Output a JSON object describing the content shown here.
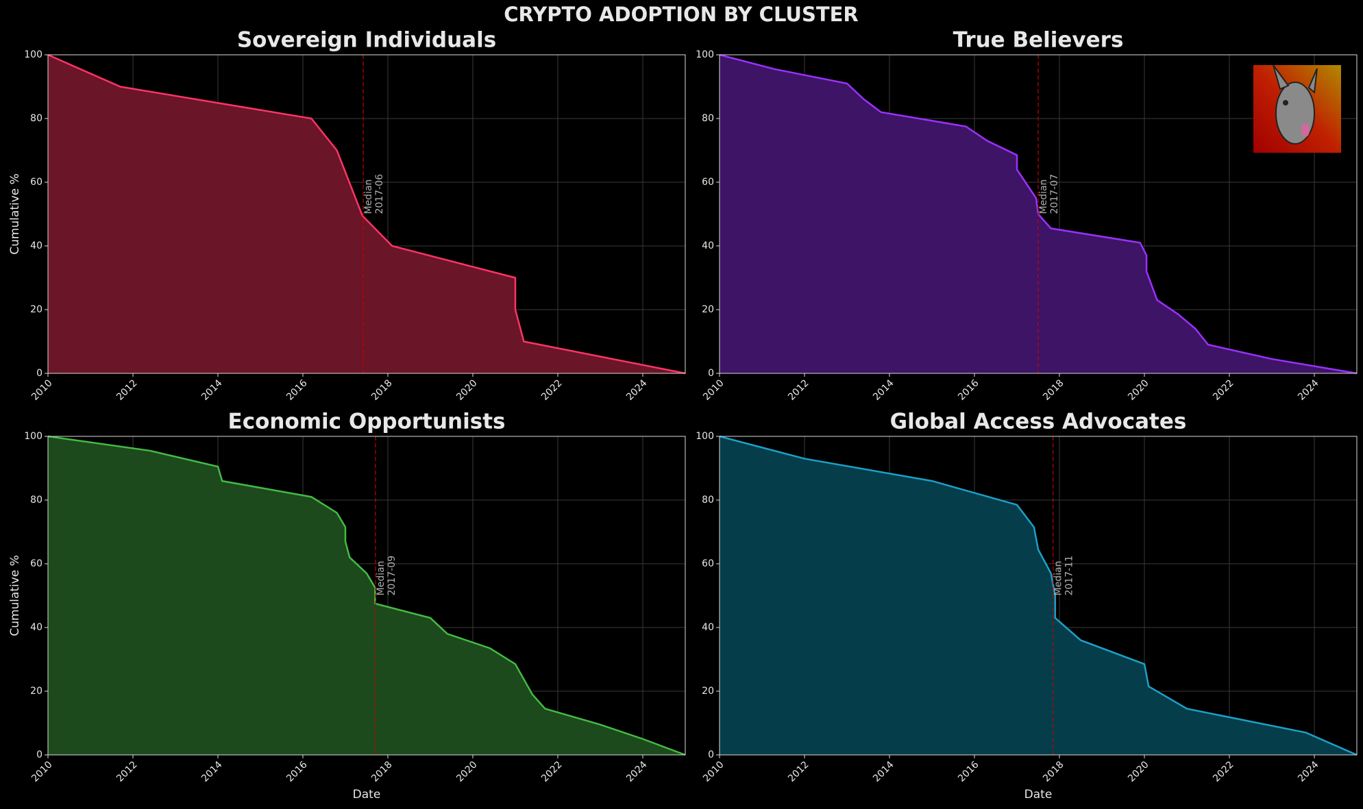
{
  "title": "CRYPTO ADOPTION BY CLUSTER",
  "chart_data": [
    {
      "type": "area",
      "title": "Sovereign Individuals",
      "ylabel": "Cumulative %",
      "x": [
        2010,
        2011.7,
        2016.2,
        2016.8,
        2017.4,
        2018.1,
        2021,
        2021,
        2021.2,
        2025
      ],
      "values": [
        100,
        90,
        80,
        70,
        49.5,
        40,
        30,
        20,
        10,
        0
      ],
      "color": "#ff3366",
      "fill_color": "#6a1528",
      "xlim": [
        2010,
        2025
      ],
      "ylim": [
        0,
        100
      ],
      "xticks": [
        2010,
        2012,
        2014,
        2016,
        2018,
        2020,
        2022,
        2024
      ],
      "yticks": [
        0,
        20,
        40,
        60,
        80,
        100
      ],
      "grid": true,
      "median_text": "Median",
      "median": {
        "value": 2017.42,
        "label": "2017-06"
      }
    },
    {
      "type": "area",
      "title": "True Believers",
      "x": [
        2010,
        2011.3,
        2013,
        2013.4,
        2013.8,
        2015.8,
        2016.3,
        2017,
        2017,
        2017.2,
        2017.45,
        2017.5,
        2017.8,
        2019.9,
        2020.05,
        2020.05,
        2020.3,
        2020.8,
        2021.2,
        2021.5,
        2023,
        2025
      ],
      "values": [
        100,
        95.5,
        91,
        86,
        82,
        77.5,
        73,
        68.5,
        64,
        60,
        55,
        50,
        45.5,
        41,
        37,
        32,
        23,
        18.5,
        14,
        9,
        4.5,
        0
      ],
      "color": "#9b30ff",
      "fill_color": "#3d1466",
      "xlim": [
        2010,
        2025
      ],
      "ylim": [
        0,
        100
      ],
      "xticks": [
        2010,
        2012,
        2014,
        2016,
        2018,
        2020,
        2022,
        2024
      ],
      "yticks": [
        0,
        20,
        40,
        60,
        80,
        100
      ],
      "grid": true,
      "median_text": "Median",
      "median": {
        "value": 2017.5,
        "label": "2017-07"
      }
    },
    {
      "type": "area",
      "title": "Economic Opportunists",
      "ylabel": "Cumulative %",
      "xlabel": "Date",
      "x": [
        2010,
        2012.4,
        2014,
        2014.1,
        2016.2,
        2016.8,
        2017,
        2017,
        2017.1,
        2017.5,
        2017.7,
        2017.7,
        2019,
        2019.4,
        2020.4,
        2021,
        2021.4,
        2021.7,
        2023,
        2024,
        2025
      ],
      "values": [
        100,
        95.5,
        90.5,
        86,
        81,
        76,
        71.5,
        67,
        62,
        57,
        52.5,
        47.5,
        43,
        38,
        33.5,
        28.5,
        19,
        14.5,
        9.5,
        5,
        0
      ],
      "color": "#44bb44",
      "fill_color": "#1c4a1c",
      "xlim": [
        2010,
        2025
      ],
      "ylim": [
        0,
        100
      ],
      "xticks": [
        2010,
        2012,
        2014,
        2016,
        2018,
        2020,
        2022,
        2024
      ],
      "yticks": [
        0,
        20,
        40,
        60,
        80,
        100
      ],
      "grid": true,
      "median_text": "Median",
      "median": {
        "value": 2017.71,
        "label": "2017-09"
      }
    },
    {
      "type": "area",
      "title": "Global Access Advocates",
      "xlabel": "Date",
      "x": [
        2010,
        2012,
        2015,
        2017,
        2017.4,
        2017.5,
        2017.8,
        2017.9,
        2017.9,
        2018.5,
        2020,
        2020.1,
        2021,
        2023.8,
        2025
      ],
      "values": [
        100,
        93,
        86,
        78.5,
        71.5,
        64.5,
        57,
        50,
        43,
        36,
        28.5,
        21.5,
        14.5,
        7,
        0
      ],
      "color": "#1ca0c8",
      "fill_color": "#053d4a",
      "xlim": [
        2010,
        2025
      ],
      "ylim": [
        0,
        100
      ],
      "xticks": [
        2010,
        2012,
        2014,
        2016,
        2018,
        2020,
        2022,
        2024
      ],
      "yticks": [
        0,
        20,
        40,
        60,
        80,
        100
      ],
      "grid": true,
      "median_text": "Median",
      "median": {
        "value": 2017.85,
        "label": "2017-11"
      }
    }
  ]
}
